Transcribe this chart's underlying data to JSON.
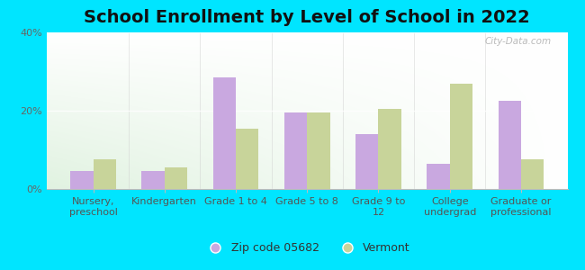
{
  "title": "School Enrollment by Level of School in 2022",
  "categories": [
    "Nursery,\npreschool",
    "Kindergarten",
    "Grade 1 to 4",
    "Grade 5 to 8",
    "Grade 9 to\n12",
    "College\nundergrad",
    "Graduate or\nprofessional"
  ],
  "zip_values": [
    4.5,
    4.5,
    28.5,
    19.5,
    14.0,
    6.5,
    22.5
  ],
  "state_values": [
    7.5,
    5.5,
    15.5,
    19.5,
    20.5,
    27.0,
    7.5
  ],
  "zip_color": "#c9a8e0",
  "state_color": "#c8d49a",
  "background_outer": "#00e5ff",
  "ylim": [
    0,
    40
  ],
  "yticks": [
    0,
    20,
    40
  ],
  "ytick_labels": [
    "0%",
    "20%",
    "40%"
  ],
  "legend_zip_label": "Zip code 05682",
  "legend_state_label": "Vermont",
  "watermark": "City-Data.com",
  "bar_width": 0.32,
  "title_fontsize": 14,
  "tick_fontsize": 8,
  "legend_fontsize": 9
}
